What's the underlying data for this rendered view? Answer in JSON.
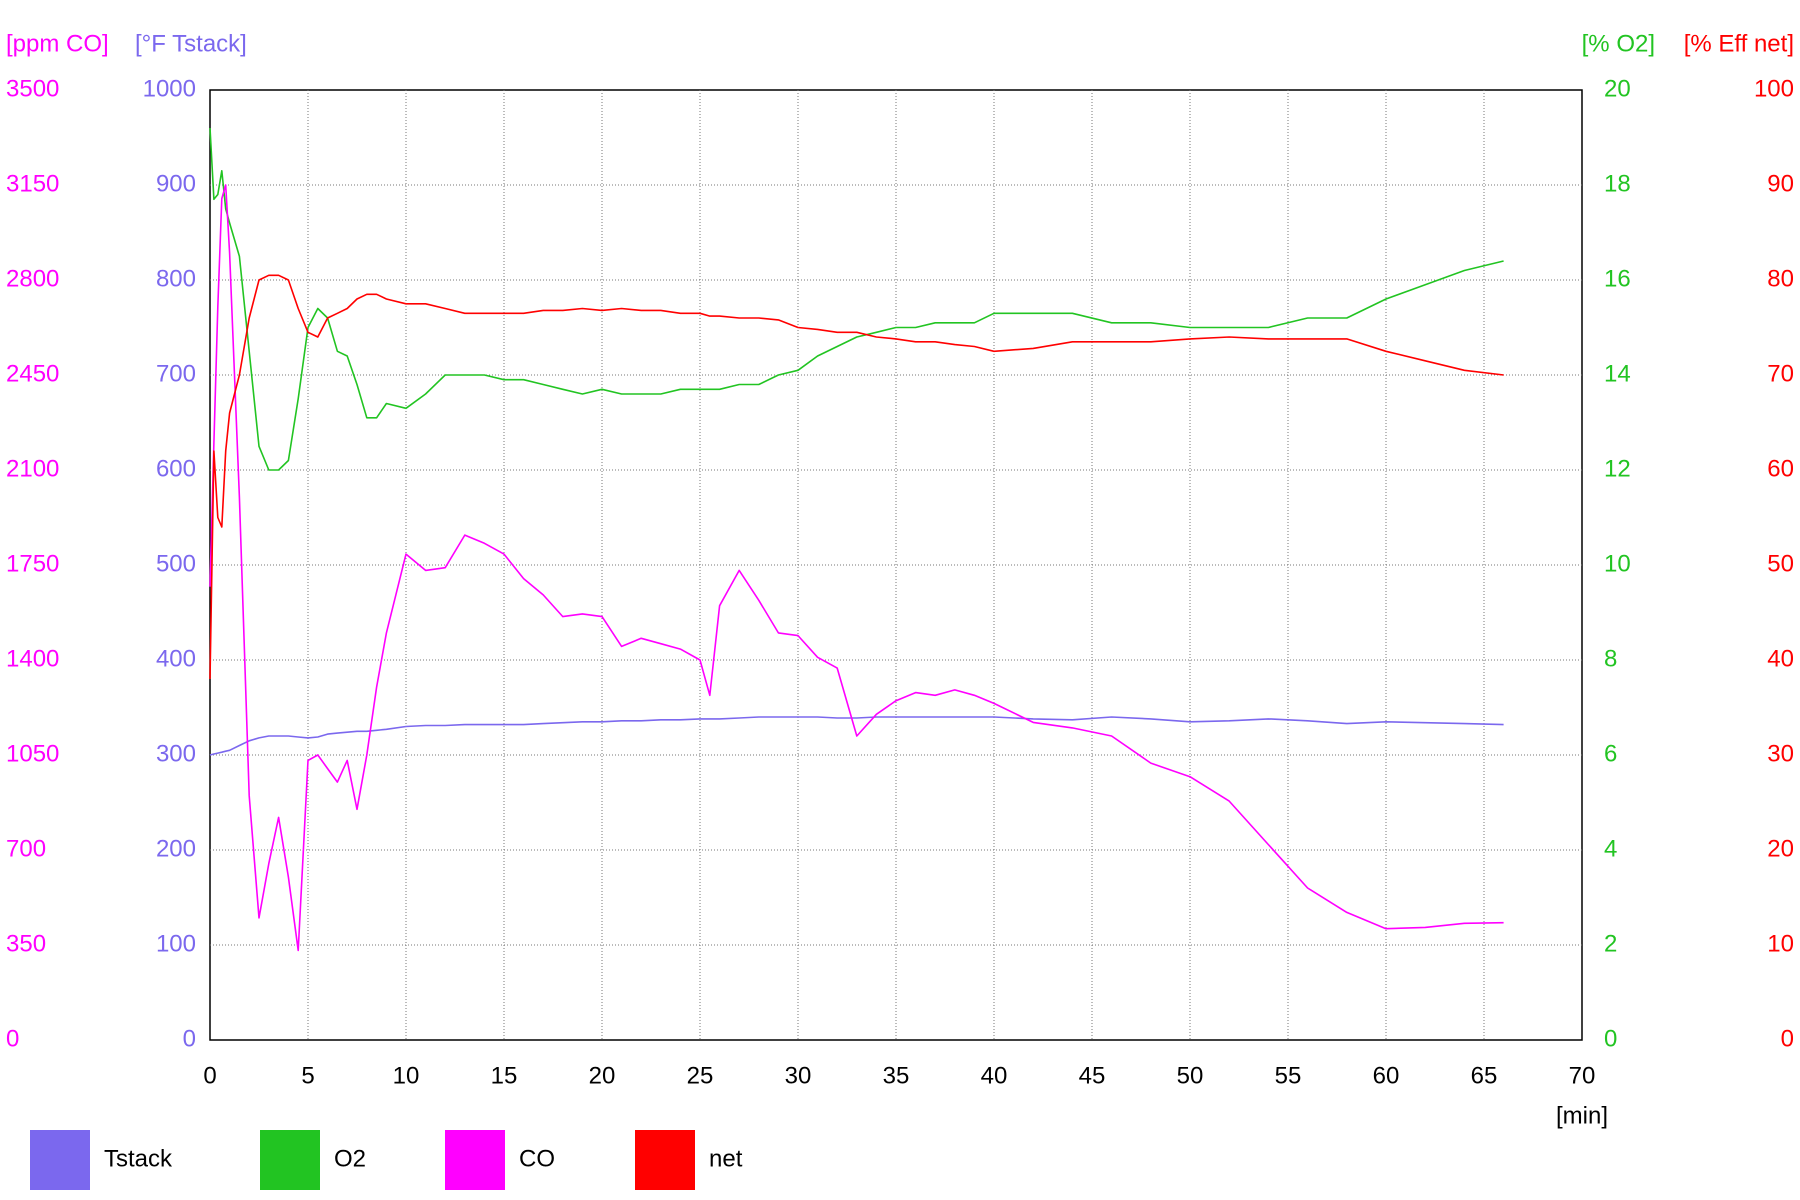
{
  "chart_data": {
    "type": "line",
    "axis_labels": {
      "y": "[ppm CO]",
      "y2": "[°F Tstack]",
      "y3": "[% O2]",
      "y4": "[% Eff net]"
    },
    "xlabel": "[min]",
    "xlim": [
      0,
      70
    ],
    "xticks": [
      0,
      5,
      10,
      15,
      20,
      25,
      30,
      35,
      40,
      45,
      50,
      55,
      60,
      65,
      70
    ],
    "ylim": [
      0,
      3500
    ],
    "yticks": [
      0,
      350,
      700,
      1050,
      1400,
      1750,
      2100,
      2450,
      2800,
      3150,
      3500
    ],
    "y2lim": [
      0,
      1000
    ],
    "y2ticks": [
      0,
      100,
      200,
      300,
      400,
      500,
      600,
      700,
      800,
      900,
      1000
    ],
    "y3lim": [
      0,
      20
    ],
    "y3ticks": [
      0,
      2,
      4,
      6,
      8,
      10,
      12,
      14,
      16,
      18,
      20
    ],
    "y4lim": [
      0,
      100
    ],
    "y4ticks": [
      0,
      10,
      20,
      30,
      40,
      50,
      60,
      70,
      80,
      90,
      100
    ],
    "grid": true,
    "x": [
      0,
      0.2,
      0.4,
      0.6,
      0.8,
      1,
      1.5,
      2,
      2.5,
      3,
      3.5,
      4,
      4.5,
      5,
      5.5,
      6,
      6.5,
      7,
      7.5,
      8,
      8.5,
      9,
      10,
      11,
      12,
      13,
      14,
      15,
      16,
      17,
      18,
      19,
      20,
      21,
      22,
      23,
      24,
      25,
      25.5,
      26,
      27,
      28,
      29,
      30,
      31,
      32,
      33,
      34,
      35,
      36,
      37,
      38,
      39,
      40,
      42,
      44,
      46,
      48,
      50,
      52,
      54,
      56,
      58,
      60,
      62,
      64,
      66
    ],
    "series": [
      {
        "name": "Tstack",
        "color": "#7b68ee",
        "axis": "y2",
        "values": [
          300,
          301,
          302,
          303,
          304,
          305,
          310,
          315,
          318,
          320,
          320,
          320,
          319,
          318,
          319,
          322,
          323,
          324,
          325,
          325,
          326,
          327,
          330,
          331,
          331,
          332,
          332,
          332,
          332,
          333,
          334,
          335,
          335,
          336,
          336,
          337,
          337,
          338,
          338,
          338,
          339,
          340,
          340,
          340,
          340,
          339,
          339,
          340,
          340,
          340,
          340,
          340,
          340,
          340,
          338,
          337,
          340,
          338,
          335,
          336,
          338,
          336,
          333,
          335,
          334,
          333,
          332
        ]
      },
      {
        "name": "O2",
        "color": "#22c422",
        "axis": "y3",
        "values": [
          19.2,
          17.7,
          17.8,
          18.3,
          17.5,
          17.2,
          16.5,
          14.5,
          12.5,
          12.0,
          12.0,
          12.2,
          13.5,
          15.0,
          15.4,
          15.2,
          14.5,
          14.4,
          13.8,
          13.1,
          13.1,
          13.4,
          13.3,
          13.6,
          14.0,
          14.0,
          14.0,
          13.9,
          13.9,
          13.8,
          13.7,
          13.6,
          13.7,
          13.6,
          13.6,
          13.6,
          13.7,
          13.7,
          13.7,
          13.7,
          13.8,
          13.8,
          14.0,
          14.1,
          14.4,
          14.6,
          14.8,
          14.9,
          15.0,
          15.0,
          15.1,
          15.1,
          15.1,
          15.3,
          15.3,
          15.3,
          15.1,
          15.1,
          15.0,
          15.0,
          15.0,
          15.2,
          15.2,
          15.6,
          15.9,
          16.2,
          16.4
        ]
      },
      {
        "name": "CO",
        "color": "#ff00ff",
        "axis": "y",
        "values": [
          1670,
          2200,
          2700,
          3100,
          3150,
          2900,
          2000,
          900,
          450,
          650,
          820,
          600,
          330,
          1030,
          1050,
          1000,
          950,
          1030,
          850,
          1050,
          1300,
          1500,
          1790,
          1730,
          1740,
          1860,
          1830,
          1790,
          1700,
          1640,
          1560,
          1570,
          1560,
          1450,
          1480,
          1460,
          1440,
          1400,
          1270,
          1600,
          1730,
          1620,
          1500,
          1490,
          1410,
          1370,
          1120,
          1200,
          1250,
          1280,
          1270,
          1290,
          1270,
          1240,
          1170,
          1150,
          1120,
          1020,
          970,
          880,
          720,
          560,
          470,
          410,
          415,
          430,
          432
        ]
      },
      {
        "name": "net",
        "color": "#ff0000",
        "axis": "y4",
        "values": [
          38,
          62,
          55,
          54,
          62,
          66,
          70,
          76,
          80,
          80.5,
          80.5,
          80,
          77,
          74.5,
          74,
          76,
          76.5,
          77,
          78,
          78.5,
          78.5,
          78,
          77.5,
          77.5,
          77,
          76.5,
          76.5,
          76.5,
          76.5,
          76.8,
          76.8,
          77,
          76.8,
          77,
          76.8,
          76.8,
          76.5,
          76.5,
          76.2,
          76.2,
          76,
          76,
          75.8,
          75,
          74.8,
          74.5,
          74.5,
          74,
          73.8,
          73.5,
          73.5,
          73.2,
          73,
          72.5,
          72.8,
          73.5,
          73.5,
          73.5,
          73.8,
          74,
          73.8,
          73.8,
          73.8,
          72.5,
          71.5,
          70.5,
          70
        ]
      }
    ]
  }
}
